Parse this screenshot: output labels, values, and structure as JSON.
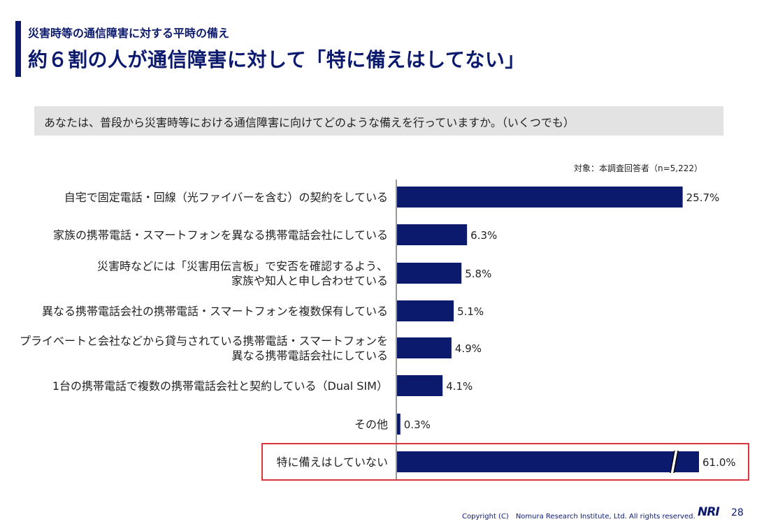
{
  "header": {
    "subtitle": "災害時等の通信障害に対する平時の備え",
    "title": "約６割の人が通信障害に対して「特に備えはしてない」"
  },
  "question": "あなたは、普段から災害時等における通信障害に向けてどのような備えを行っていますか。（いくつでも）",
  "respondents_note": "対象：本調査回答者（n=5,222）",
  "chart_data": {
    "type": "bar",
    "orientation": "horizontal",
    "categories": [
      [
        "自宅で固定電話・回線（光ファイバーを含む）の契約をしている"
      ],
      [
        "家族の携帯電話・スマートフォンを異なる携帯電話会社にしている"
      ],
      [
        "災害時などには「災害用伝言板」で安否を確認するよう、",
        "家族や知人と申し合わせている"
      ],
      [
        "異なる携帯電話会社の携帯電話・スマートフォンを複数保有している"
      ],
      [
        "プライベートと会社などから貸与されている携帯電話・スマートフォンを",
        "異なる携帯電話会社にしている"
      ],
      [
        "1台の携帯電話で複数の携帯電話会社と契約している（Dual SIM）"
      ],
      [
        "その他"
      ],
      [
        "特に備えはしていない"
      ]
    ],
    "values": [
      25.7,
      6.3,
      5.8,
      5.1,
      4.9,
      4.1,
      0.3,
      61.0
    ],
    "value_labels": [
      "25.7%",
      "6.3%",
      "5.8%",
      "5.1%",
      "4.9%",
      "4.1%",
      "0.3%",
      "61.0%"
    ],
    "axis_break_on_last_bar": true,
    "highlighted_category_index": 7,
    "bar_color": "#0c1a6e",
    "highlight_color": "#d9373c"
  },
  "footer": {
    "copyright": "Copyright (C)　Nomura Research Institute, Ltd. All rights reserved.",
    "logo": "NRI",
    "page_number": "28"
  }
}
